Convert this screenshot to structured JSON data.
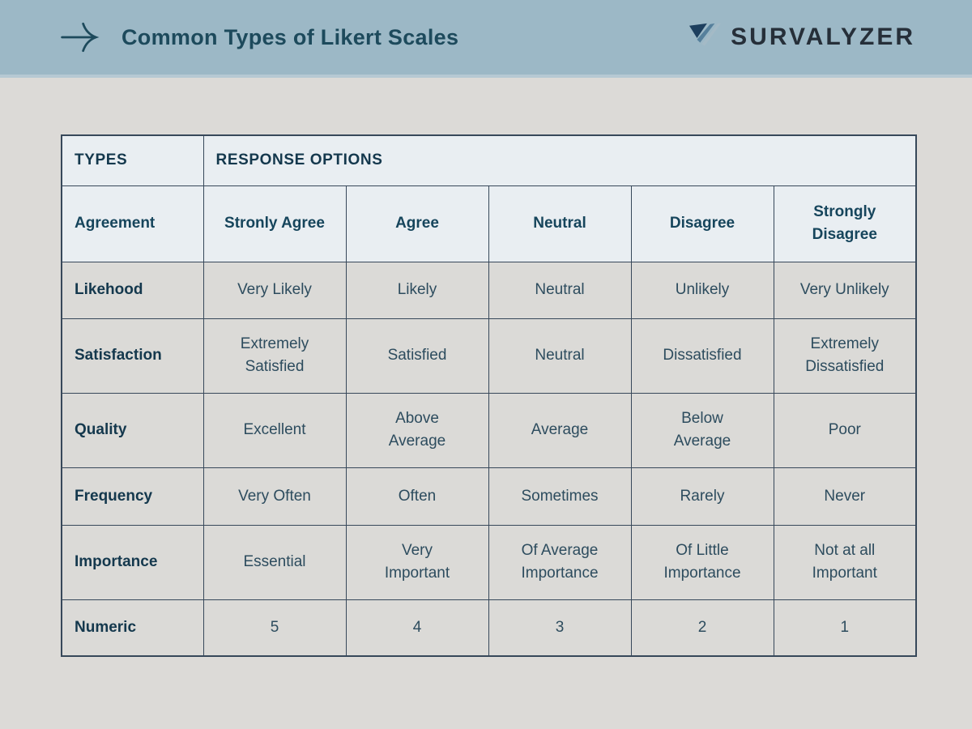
{
  "banner": {
    "title": "Common Types of Likert Scales",
    "logo_text": "SURVALYZER"
  },
  "colors": {
    "banner_bg": "#9cb8c6",
    "page_bg": "#dcdad7",
    "highlight_bg": "#e9eef2",
    "cell_bg": "#dbdad7",
    "border": "#37485a",
    "dark_text": "#14384d",
    "body_text": "#2d4c5e",
    "logo_dark": "#1d3f5e",
    "logo_mid": "#56809c",
    "logo_light": "#a4bac6"
  },
  "table": {
    "header": {
      "types_label": "TYPES",
      "options_label": "RESPONSE OPTIONS"
    },
    "rows": [
      {
        "type": "Agreement",
        "highlight": true,
        "options": [
          "Stronly Agree",
          "Agree",
          "Neutral",
          "Disagree",
          "Strongly\nDisagree"
        ]
      },
      {
        "type": "Likehood",
        "highlight": false,
        "options": [
          "Very Likely",
          "Likely",
          "Neutral",
          "Unlikely",
          "Very Unlikely"
        ]
      },
      {
        "type": "Satisfaction",
        "highlight": false,
        "options": [
          "Extremely\nSatisfied",
          "Satisfied",
          "Neutral",
          "Dissatisfied",
          "Extremely\nDissatisfied"
        ]
      },
      {
        "type": "Quality",
        "highlight": false,
        "options": [
          "Excellent",
          "Above\nAverage",
          "Average",
          "Below\nAverage",
          "Poor"
        ]
      },
      {
        "type": "Frequency",
        "highlight": false,
        "options": [
          "Very Often",
          "Often",
          "Sometimes",
          "Rarely",
          "Never"
        ]
      },
      {
        "type": "Importance",
        "highlight": false,
        "options": [
          "Essential",
          "Very\nImportant",
          "Of Average\nImportance",
          "Of Little\nImportance",
          "Not at all\nImportant"
        ]
      },
      {
        "type": "Numeric",
        "highlight": false,
        "options": [
          "5",
          "4",
          "3",
          "2",
          "1"
        ]
      }
    ]
  },
  "chart_data": {
    "type": "table",
    "title": "Common Types of Likert Scales",
    "header": [
      "TYPES",
      "RESPONSE OPTIONS"
    ],
    "rows": [
      [
        "Agreement",
        "Stronly Agree",
        "Agree",
        "Neutral",
        "Disagree",
        "Strongly Disagree"
      ],
      [
        "Likehood",
        "Very Likely",
        "Likely",
        "Neutral",
        "Unlikely",
        "Very Unlikely"
      ],
      [
        "Satisfaction",
        "Extremely Satisfied",
        "Satisfied",
        "Neutral",
        "Dissatisfied",
        "Extremely Dissatisfied"
      ],
      [
        "Quality",
        "Excellent",
        "Above Average",
        "Average",
        "Below Average",
        "Poor"
      ],
      [
        "Frequency",
        "Very Often",
        "Often",
        "Sometimes",
        "Rarely",
        "Never"
      ],
      [
        "Importance",
        "Essential",
        "Very Important",
        "Of Average Importance",
        "Of Little Importance",
        "Not at all Important"
      ],
      [
        "Numeric",
        "5",
        "4",
        "3",
        "2",
        "1"
      ]
    ]
  }
}
